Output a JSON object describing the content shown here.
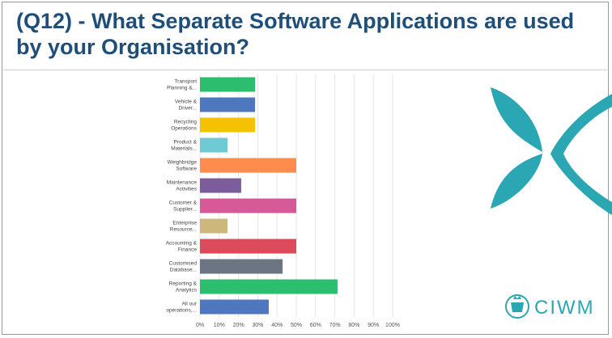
{
  "slide": {
    "title": "(Q12) - What Separate Software Applications are used by your Organisation?"
  },
  "logo": {
    "text": "CIWM",
    "color": "#2aa7b3",
    "icons": [
      "petal-logo-icon",
      "crest-icon"
    ]
  },
  "chart_data": {
    "type": "bar",
    "orientation": "horizontal",
    "categories": [
      "Transport Planning &...",
      "Vehicle & Driver...",
      "Recycling Operations",
      "Product & Materials...",
      "Weighbridge Software",
      "Maintenance Activities",
      "Customer & Supplier...",
      "Enterprise Resource...",
      "Accounting & Finance",
      "Customised Database...",
      "Reporting & Analytics",
      "All our operations,..."
    ],
    "category_lines": [
      [
        "Transport",
        "Planning &..."
      ],
      [
        "Vehicle &",
        "Driver..."
      ],
      [
        "Recycling",
        "Operations"
      ],
      [
        "Product &",
        "Materials..."
      ],
      [
        "Weighbridge",
        "Software"
      ],
      [
        "Maintenance",
        "Activities"
      ],
      [
        "Customer &",
        "Supplier..."
      ],
      [
        "Enterprise",
        "Resource..."
      ],
      [
        "Accounting &",
        "Finance"
      ],
      [
        "Customised",
        "Database..."
      ],
      [
        "Reporting &",
        "Analytics"
      ],
      [
        "All our",
        "operations,..."
      ]
    ],
    "values": [
      28.6,
      28.6,
      28.6,
      14.3,
      50,
      21.4,
      50,
      14.3,
      50,
      42.9,
      71.4,
      35.7
    ],
    "colors": [
      "#2dbd6e",
      "#4f77be",
      "#f5c200",
      "#6fcad3",
      "#fd8c4e",
      "#7c5d9b",
      "#d65a98",
      "#cdb77a",
      "#dc4b5c",
      "#6b7682",
      "#2dbd6e",
      "#4f77be"
    ],
    "xlim": [
      0,
      100
    ],
    "x_ticks": [
      "0%",
      "10%",
      "20%",
      "30%",
      "40%",
      "50%",
      "60%",
      "70%",
      "80%",
      "90%",
      "100%"
    ],
    "grid": true,
    "legend": "none"
  }
}
